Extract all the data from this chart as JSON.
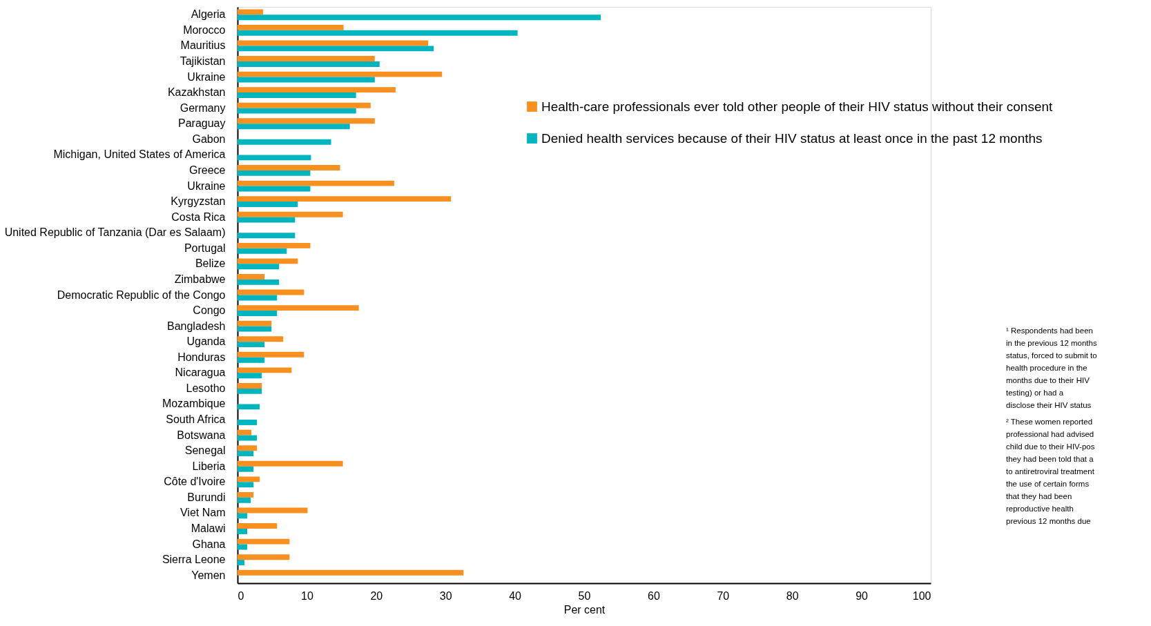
{
  "chart_data": {
    "type": "bar",
    "orientation": "horizontal",
    "xlabel": "Per cent",
    "categories": [
      "Algeria",
      "Morocco",
      "Mauritius",
      "Tajikistan",
      "Ukraine",
      "Kazakhstan",
      "Germany",
      "Paraguay",
      "Gabon",
      "Michigan, United States of America",
      "Greece",
      "Ukraine",
      "Kyrgyzstan",
      "Costa Rica",
      "United Republic of Tanzania (Dar es Salaam)",
      "Portugal",
      "Belize",
      "Zimbabwe",
      "Democratic Republic of the Congo",
      "Congo",
      "Bangladesh",
      "Uganda",
      "Honduras",
      "Nicaragua",
      "Lesotho",
      "Mozambique",
      "South Africa",
      "Botswana",
      "Senegal",
      "Liberia",
      "Côte d'Ivoire",
      "Burundi",
      "Viet Nam",
      "Malawi",
      "Ghana",
      "Sierra Leone",
      "Yemen"
    ],
    "series": [
      {
        "name": "Health-care professionals ever told other people of their HIV status without their consent",
        "color": "#f7901e",
        "values": [
          3.7,
          15.3,
          27.5,
          19.8,
          29.5,
          22.8,
          19.2,
          19.8,
          null,
          null,
          14.8,
          22.6,
          30.8,
          15.2,
          null,
          10.5,
          8.7,
          3.9,
          9.6,
          17.5,
          4.9,
          6.6,
          9.6,
          7.8,
          3.5,
          null,
          null,
          2.0,
          2.8,
          15.2,
          3.2,
          2.3,
          10.1,
          5.7,
          7.5,
          7.5,
          32.6
        ]
      },
      {
        "name": "Denied health services because of their HIV status at least once in the past 12 months",
        "color": "#00b5be",
        "values": [
          52.4,
          40.4,
          28.3,
          20.5,
          19.8,
          17.1,
          17.1,
          16.2,
          13.5,
          10.6,
          10.5,
          10.5,
          8.7,
          8.3,
          8.3,
          7.1,
          6.0,
          6.0,
          5.7,
          5.7,
          4.9,
          3.9,
          3.9,
          3.5,
          3.5,
          3.2,
          2.8,
          2.8,
          2.3,
          2.3,
          2.3,
          1.9,
          1.4,
          1.4,
          1.4,
          1.0,
          null
        ]
      }
    ],
    "xlim": [
      0,
      100
    ],
    "xticks": [
      0,
      10,
      20,
      30,
      40,
      50,
      60,
      70,
      80,
      90,
      100
    ],
    "grid": false,
    "legend": "top right",
    "annotations": [
      "¹ Respondents had been",
      "in the previous 12 months",
      "status, forced to submit to",
      "health procedure in the",
      "months due to their HIV",
      "testing) or had a",
      "disclose their HIV status",
      "² These women reported",
      "professional had advised",
      "child due to their HIV-pos",
      "they had been told that a",
      "to antiretroviral treatment",
      "the use of certain forms",
      "that they had been",
      "reproductive health",
      "previous 12 months due"
    ]
  }
}
